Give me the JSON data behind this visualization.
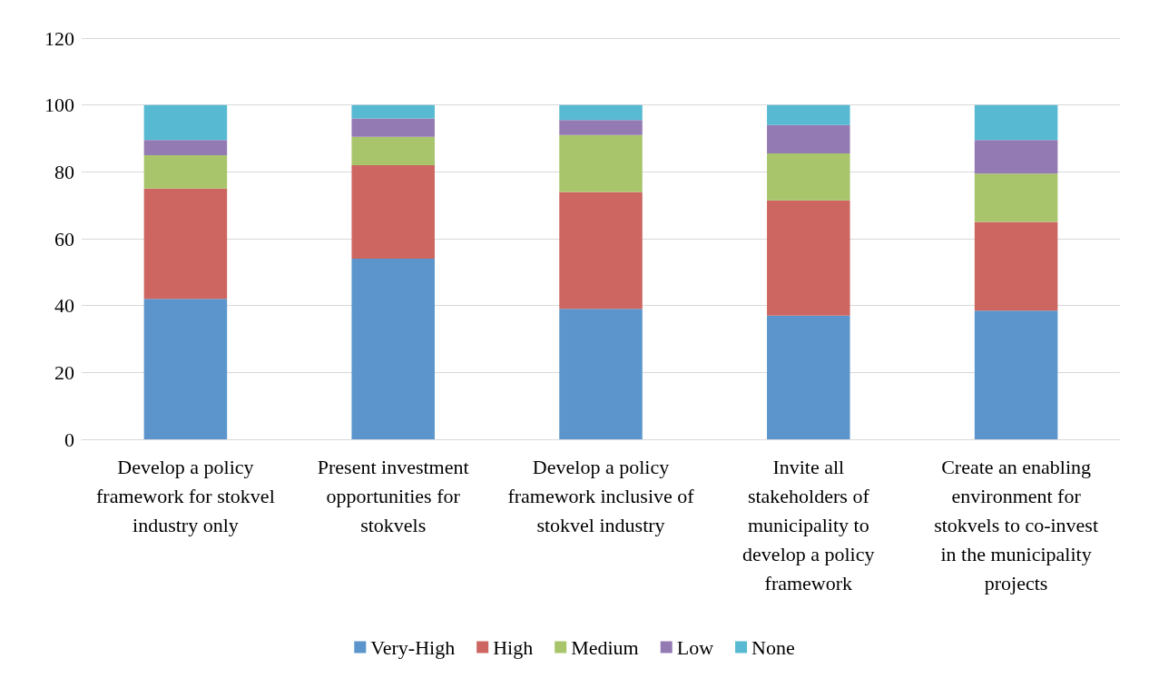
{
  "chart_data": {
    "type": "bar",
    "stacked": true,
    "categories": [
      "Develop a policy framework for stokvel industry only",
      "Present investment opportunities for stokvels",
      "Develop a policy framework inclusive of stokvel industry",
      "Invite all stakeholders of municipality to develop a policy framework",
      "Create an enabling environment for stokvels to co-invest in the municipality projects"
    ],
    "series": [
      {
        "name": "Very-High",
        "color": "#5b95cb",
        "values": [
          42,
          54,
          39,
          37,
          38.5
        ]
      },
      {
        "name": "High",
        "color": "#cd6660",
        "values": [
          33,
          28,
          35,
          34.5,
          26.5
        ]
      },
      {
        "name": "Medium",
        "color": "#a8c56b",
        "values": [
          10,
          8.5,
          17,
          14,
          14.5
        ]
      },
      {
        "name": "Low",
        "color": "#947ab3",
        "values": [
          4.5,
          5.5,
          4.5,
          8.5,
          10
        ]
      },
      {
        "name": "None",
        "color": "#57bad2",
        "values": [
          10.5,
          4,
          4.5,
          6,
          10.5
        ]
      }
    ],
    "ylim": [
      0,
      120
    ],
    "yticks": [
      0,
      20,
      40,
      60,
      80,
      100,
      120
    ],
    "grid": "y",
    "legend": "bottom"
  }
}
